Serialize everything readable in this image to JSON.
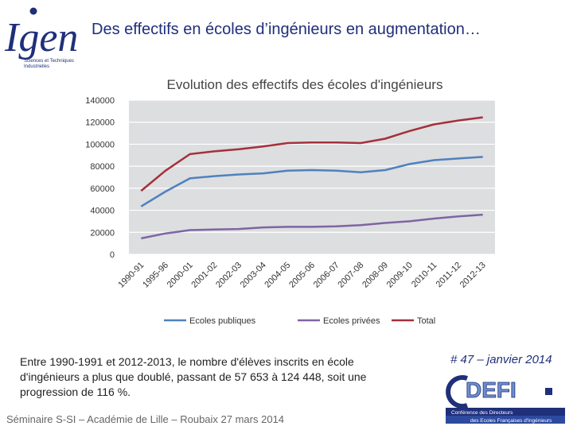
{
  "header": {
    "title": "Des effectifs en écoles d’ingénieurs en augmentation…",
    "logo_text": "Igen",
    "logo_subtitle": "Sciences et Techniques Industrielles"
  },
  "chart_data": {
    "type": "line",
    "title": "Evolution des effectifs des écoles d'ingénieurs",
    "categories": [
      "1990-91",
      "1995-96",
      "2000-01",
      "2001-02",
      "2002-03",
      "2003-04",
      "2004-05",
      "2005-06",
      "2006-07",
      "2007-08",
      "2008-09",
      "2009-10",
      "2010-11",
      "2011-12",
      "2012-13"
    ],
    "ylim": [
      0,
      140000
    ],
    "yticks": [
      "0",
      "20000",
      "40000",
      "60000",
      "80000",
      "100000",
      "120000",
      "140000"
    ],
    "grid": true,
    "legend_position": "bottom",
    "series": [
      {
        "name": "Ecoles publiques",
        "color": "#4f81bd",
        "values": [
          43500,
          57000,
          69000,
          71000,
          72500,
          73500,
          76000,
          76500,
          76000,
          74500,
          76500,
          82000,
          85500,
          87000,
          88500
        ]
      },
      {
        "name": "Ecoles privées",
        "color": "#8064a2",
        "values": [
          14500,
          19000,
          22000,
          22500,
          23000,
          24500,
          25000,
          25000,
          25500,
          26500,
          28500,
          30000,
          32500,
          34500,
          36000
        ]
      },
      {
        "name": "Total",
        "color": "#a5303a",
        "values": [
          57653,
          76000,
          91000,
          93500,
          95500,
          98000,
          101000,
          101500,
          101500,
          101000,
          105000,
          112000,
          118000,
          121500,
          124448
        ]
      }
    ]
  },
  "summary": "Entre 1990-1991 et 2012-2013, le nombre d'élèves inscrits en école d'ingénieurs a plus que doublé, passant de 57 653 à 124 448, soit une progression de 116 %.",
  "footer": "Séminaire S-SI – Académie de Lille – Roubaix 27 mars 2014",
  "issue": "# 47 – janvier 2014",
  "defi": {
    "logo_text": "DEFI",
    "line1": "Conférence des Directeurs",
    "line2": "des Ecoles Françaises d'Ingénieurs"
  }
}
